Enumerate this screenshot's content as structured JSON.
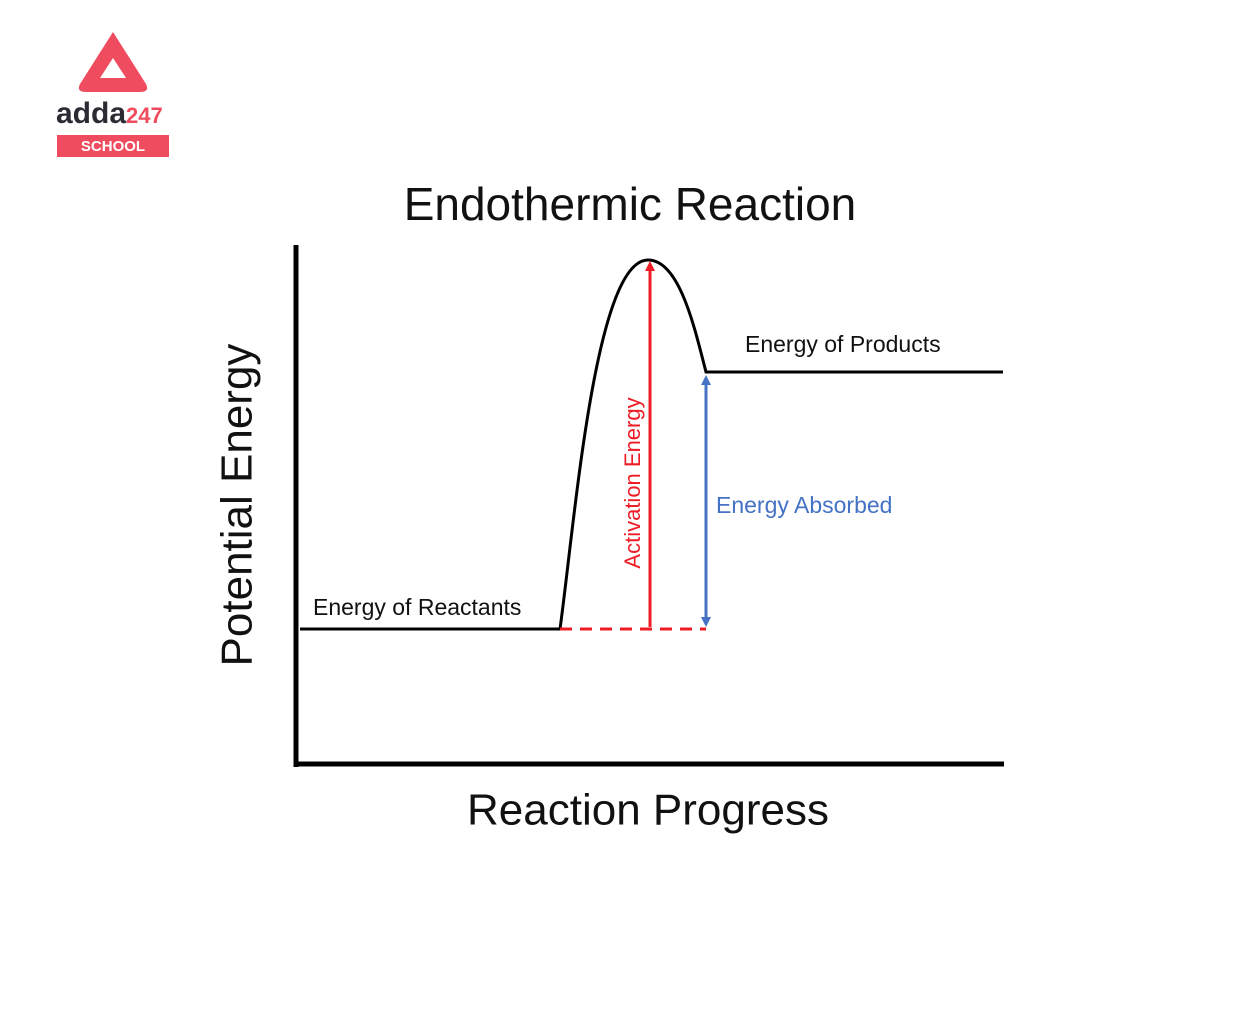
{
  "logo": {
    "brand": "adda",
    "number": "247",
    "badge": "SCHOOL"
  },
  "diagram": {
    "title": "Endothermic Reaction",
    "y_axis_label": "Potential Energy",
    "x_axis_label": "Reaction Progress",
    "annotations": {
      "reactants": "Energy of Reactants",
      "products": "Energy of Products",
      "activation": "Activation Energy",
      "absorbed": "Energy Absorbed"
    }
  }
}
